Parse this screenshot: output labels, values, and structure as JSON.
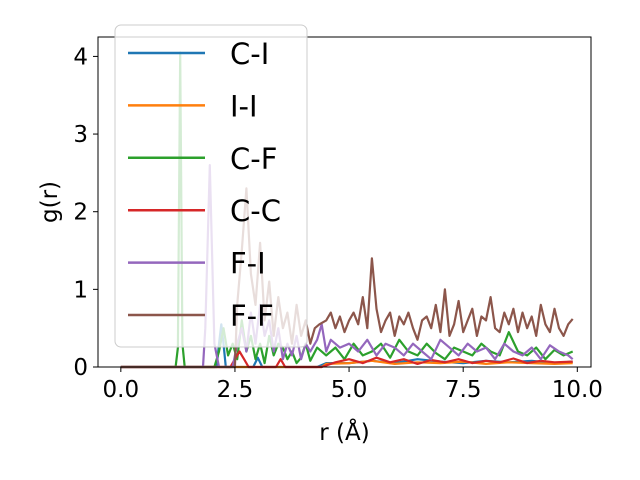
{
  "chart_data": {
    "type": "line",
    "xlabel": "r (Å)",
    "ylabel": "g(r)",
    "xlim": [
      -0.5,
      10.3
    ],
    "ylim": [
      0,
      4.25
    ],
    "xticks": [
      {
        "value": 0.0,
        "label": "0.0"
      },
      {
        "value": 2.5,
        "label": "2.5"
      },
      {
        "value": 5.0,
        "label": "5.0"
      },
      {
        "value": 7.5,
        "label": "7.5"
      },
      {
        "value": 10.0,
        "label": "10.0"
      }
    ],
    "yticks": [
      {
        "value": 0,
        "label": "0"
      },
      {
        "value": 1,
        "label": "1"
      },
      {
        "value": 2,
        "label": "2"
      },
      {
        "value": 3,
        "label": "3"
      },
      {
        "value": 4,
        "label": "4"
      }
    ],
    "grid": false,
    "legend_position": "upper-left",
    "series": [
      {
        "name": "C-I",
        "color": "#1f77b4",
        "x": [
          0,
          2.1,
          2.15,
          2.2,
          2.25,
          2.3,
          2.9,
          3.0,
          3.1,
          4.3,
          4.5,
          5.0,
          5.5,
          6.0,
          6.5,
          7.0,
          7.5,
          8.0,
          8.5,
          9.0,
          9.5,
          9.9
        ],
        "y": [
          0,
          0,
          0.3,
          0.55,
          0.3,
          0,
          0,
          0.12,
          0,
          0,
          0.05,
          0.05,
          0.08,
          0.05,
          0.1,
          0.07,
          0.05,
          0.08,
          0.06,
          0.08,
          0.05,
          0.07
        ]
      },
      {
        "name": "I-I",
        "color": "#ff7f0e",
        "x": [
          0,
          4.4,
          4.5,
          5.0,
          5.5,
          6.0,
          6.5,
          7.0,
          7.5,
          8.0,
          8.5,
          9.0,
          9.5,
          9.9
        ],
        "y": [
          0,
          0,
          0.04,
          0.05,
          0.08,
          0.04,
          0.06,
          0.05,
          0.07,
          0.04,
          0.06,
          0.05,
          0.04,
          0.05
        ]
      },
      {
        "name": "C-F",
        "color": "#2ca02c",
        "x": [
          0,
          1.2,
          1.25,
          1.3,
          1.35,
          1.4,
          1.5,
          2.05,
          2.15,
          2.25,
          2.35,
          2.45,
          2.55,
          2.65,
          2.75,
          2.85,
          2.95,
          3.05,
          3.15,
          3.25,
          3.35,
          3.45,
          3.55,
          3.65,
          3.75,
          3.85,
          3.95,
          4.05,
          4.15,
          4.3,
          4.5,
          4.7,
          4.9,
          5.1,
          5.3,
          5.5,
          5.7,
          5.9,
          6.1,
          6.3,
          6.5,
          6.7,
          6.9,
          7.1,
          7.3,
          7.5,
          7.7,
          7.9,
          8.1,
          8.3,
          8.5,
          8.7,
          8.9,
          9.1,
          9.3,
          9.5,
          9.7,
          9.9
        ],
        "y": [
          0,
          0,
          0.25,
          4.05,
          0.3,
          0,
          0,
          0,
          0.2,
          0.5,
          0.15,
          0.3,
          0.1,
          0.6,
          0.2,
          0.4,
          0.1,
          0.3,
          0.05,
          0.4,
          0.15,
          0.3,
          0.25,
          0.1,
          0.2,
          0.05,
          0.12,
          0.3,
          0.08,
          0.25,
          0.15,
          0.25,
          0.1,
          0.3,
          0.15,
          0.2,
          0.3,
          0.12,
          0.35,
          0.2,
          0.15,
          0.3,
          0.18,
          0.1,
          0.25,
          0.2,
          0.15,
          0.3,
          0.2,
          0.15,
          0.45,
          0.2,
          0.15,
          0.25,
          0.1,
          0.22,
          0.15,
          0.2
        ]
      },
      {
        "name": "C-C",
        "color": "#d62728",
        "x": [
          0,
          2.4,
          2.5,
          2.6,
          2.7,
          2.8,
          3.4,
          3.5,
          3.6,
          4.4,
          4.7,
          5.0,
          5.3,
          5.6,
          5.9,
          6.2,
          6.5,
          6.8,
          7.1,
          7.4,
          7.7,
          8.0,
          8.3,
          8.6,
          8.9,
          9.2,
          9.5,
          9.9
        ],
        "y": [
          0,
          0,
          0.1,
          0.2,
          0.1,
          0,
          0,
          0.1,
          0,
          0,
          0.06,
          0.1,
          0.05,
          0.12,
          0.06,
          0.1,
          0.04,
          0.09,
          0.06,
          0.1,
          0.05,
          0.08,
          0.06,
          0.11,
          0.05,
          0.08,
          0.06,
          0.07
        ]
      },
      {
        "name": "F-I",
        "color": "#9467bd",
        "x": [
          0,
          1.8,
          1.85,
          1.95,
          2.05,
          2.15,
          2.25,
          2.45,
          2.55,
          2.65,
          2.75,
          2.85,
          2.95,
          3.05,
          3.15,
          3.25,
          3.35,
          3.45,
          3.55,
          3.65,
          3.75,
          3.85,
          3.95,
          4.05,
          4.15,
          4.3,
          4.4,
          4.5,
          4.6,
          4.8,
          5.0,
          5.2,
          5.4,
          5.6,
          5.8,
          6.0,
          6.2,
          6.4,
          6.6,
          6.8,
          7.0,
          7.2,
          7.4,
          7.6,
          7.8,
          8.0,
          8.2,
          8.4,
          8.6,
          8.8,
          9.0,
          9.2,
          9.4,
          9.6,
          9.8,
          9.9
        ],
        "y": [
          0,
          0,
          0.5,
          2.6,
          0.3,
          0,
          0,
          0,
          0.3,
          0.5,
          0.2,
          0.7,
          0.3,
          0.8,
          0.4,
          0.6,
          0.2,
          0.5,
          0.1,
          0.3,
          0.15,
          0.4,
          0.1,
          0.3,
          0.2,
          0.35,
          0.55,
          0.2,
          0.35,
          0.25,
          0.3,
          0.2,
          0.35,
          0.15,
          0.3,
          0.25,
          0.15,
          0.3,
          0.2,
          0.1,
          0.35,
          0.25,
          0.15,
          0.3,
          0.2,
          0.25,
          0.1,
          0.3,
          0.2,
          0.15,
          0.25,
          0.1,
          0.28,
          0.2,
          0.15,
          0.1
        ]
      },
      {
        "name": "F-F",
        "color": "#8c564b",
        "x": [
          0,
          2.5,
          2.55,
          2.65,
          2.75,
          2.85,
          2.95,
          3.05,
          3.15,
          3.25,
          3.35,
          3.45,
          3.55,
          3.65,
          3.75,
          3.85,
          3.95,
          4.05,
          4.15,
          4.25,
          4.35,
          4.5,
          4.6,
          4.7,
          4.8,
          4.9,
          5.0,
          5.1,
          5.2,
          5.3,
          5.4,
          5.5,
          5.6,
          5.7,
          5.8,
          5.9,
          6.0,
          6.1,
          6.2,
          6.3,
          6.4,
          6.5,
          6.6,
          6.7,
          6.8,
          6.9,
          7.0,
          7.1,
          7.2,
          7.3,
          7.4,
          7.5,
          7.6,
          7.7,
          7.8,
          7.9,
          8.0,
          8.1,
          8.2,
          8.3,
          8.4,
          8.5,
          8.6,
          8.7,
          8.8,
          8.9,
          9.0,
          9.1,
          9.2,
          9.3,
          9.4,
          9.5,
          9.6,
          9.7,
          9.8,
          9.9
        ],
        "y": [
          0,
          0,
          0.8,
          1.5,
          2.3,
          1.2,
          0.8,
          1.6,
          0.6,
          1.1,
          0.4,
          0.9,
          0.5,
          0.7,
          0.3,
          0.8,
          0.4,
          0.6,
          0.3,
          0.5,
          0.55,
          0.6,
          0.7,
          0.5,
          0.65,
          0.45,
          0.6,
          0.7,
          0.55,
          0.9,
          0.5,
          1.4,
          0.75,
          0.45,
          0.6,
          0.7,
          0.4,
          0.65,
          0.55,
          0.7,
          0.5,
          0.35,
          0.6,
          0.65,
          0.5,
          0.8,
          0.45,
          1.0,
          0.4,
          0.55,
          0.85,
          0.45,
          0.6,
          0.75,
          0.4,
          0.65,
          0.6,
          0.9,
          0.5,
          0.45,
          0.7,
          0.55,
          0.75,
          0.45,
          0.7,
          0.5,
          0.65,
          0.4,
          0.8,
          0.55,
          0.45,
          0.75,
          0.5,
          0.4,
          0.55,
          0.62
        ]
      }
    ]
  }
}
